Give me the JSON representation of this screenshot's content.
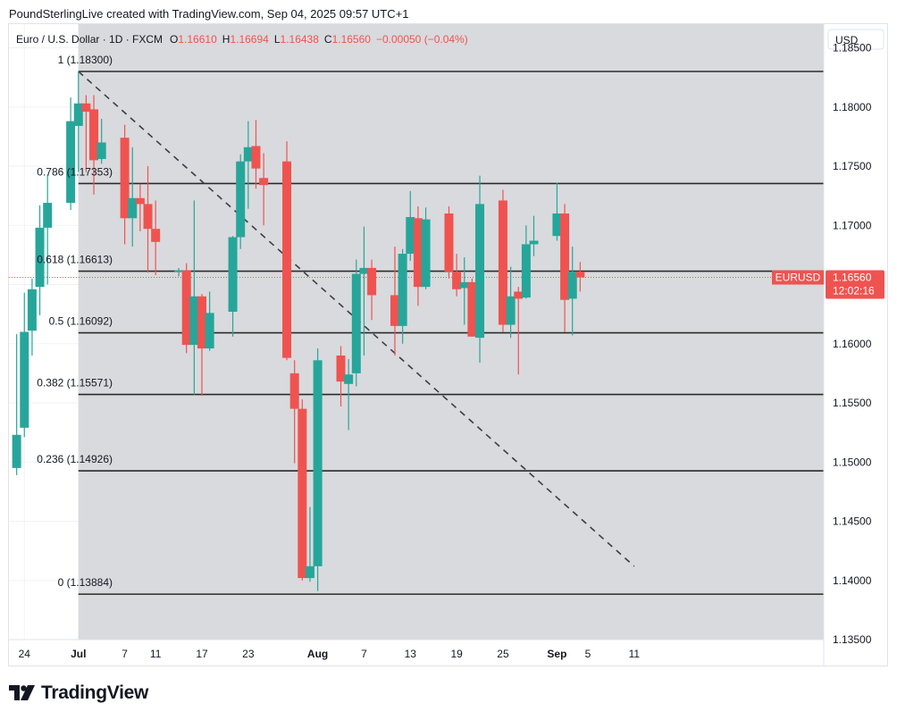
{
  "header": {
    "caption": "PoundSterlingLive created with TradingView.com, Sep 04, 2025 09:57 UTC+1"
  },
  "legend": {
    "symbol": "Euro / U.S. Dollar · 1D · FXCM",
    "o_label": "O",
    "o_value": "1.16610",
    "h_label": "H",
    "h_value": "1.16694",
    "l_label": "L",
    "l_value": "1.16438",
    "c_label": "C",
    "c_value": "1.16560",
    "change": "−0.00050 (−0.04%)"
  },
  "axis": {
    "currency": "USD",
    "price_ticks": [
      "1.18500",
      "1.18000",
      "1.17500",
      "1.17000",
      "1.16500",
      "1.16000",
      "1.15500",
      "1.15000",
      "1.14500",
      "1.14000",
      "1.13500"
    ],
    "time_ticks": [
      "24",
      "Jul",
      "7",
      "11",
      "17",
      "23",
      "Aug",
      "7",
      "13",
      "19",
      "25",
      "Sep",
      "5",
      "11"
    ]
  },
  "last_price": {
    "symbol": "EURUSD",
    "price": "1.16560",
    "countdown": "12:02:16"
  },
  "fib_labels": [
    "1 (1.18300)",
    "0.786 (1.17353)",
    "0.618 (1.16613)",
    "0.5 (1.16092)",
    "0.382 (1.15571)",
    "0.236 (1.14926)",
    "0 (1.13884)"
  ],
  "colors": {
    "up": "#26a69a",
    "down": "#ef5350",
    "zone": "#d9dadd",
    "fib_line": "#2a2a2a",
    "trend_line": "#3a3d45"
  },
  "logo": {
    "text": "TradingView"
  },
  "chart_data": {
    "type": "candlestick",
    "title": "Euro / U.S. Dollar · 1D · FXCM",
    "ylim": [
      1.135,
      1.187
    ],
    "xlim": [
      "2025-06-22",
      "2025-09-12"
    ],
    "candles": [
      {
        "date": "2025-06-23",
        "o": 1.1495,
        "h": 1.1608,
        "l": 1.1489,
        "c": 1.1523
      },
      {
        "date": "2025-06-24",
        "o": 1.1529,
        "h": 1.1643,
        "l": 1.1521,
        "c": 1.161
      },
      {
        "date": "2025-06-25",
        "o": 1.1611,
        "h": 1.1655,
        "l": 1.159,
        "c": 1.1646
      },
      {
        "date": "2025-06-26",
        "o": 1.1648,
        "h": 1.1717,
        "l": 1.1624,
        "c": 1.1698
      },
      {
        "date": "2025-06-27",
        "o": 1.1698,
        "h": 1.1743,
        "l": 1.165,
        "c": 1.1719
      },
      {
        "date": "2025-06-30",
        "o": 1.1719,
        "h": 1.1808,
        "l": 1.1713,
        "c": 1.1788
      },
      {
        "date": "2025-07-01",
        "o": 1.1784,
        "h": 1.183,
        "l": 1.1745,
        "c": 1.1803
      },
      {
        "date": "2025-07-02",
        "o": 1.1803,
        "h": 1.181,
        "l": 1.1745,
        "c": 1.1796
      },
      {
        "date": "2025-07-03",
        "o": 1.1798,
        "h": 1.181,
        "l": 1.1726,
        "c": 1.1755
      },
      {
        "date": "2025-07-04",
        "o": 1.1756,
        "h": 1.179,
        "l": 1.1752,
        "c": 1.177
      },
      {
        "date": "2025-07-07",
        "o": 1.1774,
        "h": 1.1785,
        "l": 1.1684,
        "c": 1.1706
      },
      {
        "date": "2025-07-08",
        "o": 1.1706,
        "h": 1.1766,
        "l": 1.1682,
        "c": 1.1723
      },
      {
        "date": "2025-07-09",
        "o": 1.1723,
        "h": 1.1735,
        "l": 1.1695,
        "c": 1.1718
      },
      {
        "date": "2025-07-10",
        "o": 1.1718,
        "h": 1.175,
        "l": 1.166,
        "c": 1.1697
      },
      {
        "date": "2025-07-11",
        "o": 1.1697,
        "h": 1.1721,
        "l": 1.1658,
        "c": 1.1686
      },
      {
        "date": "2025-07-14",
        "o": 1.1662,
        "h": 1.1664,
        "l": 1.1657,
        "c": 1.1662
      },
      {
        "date": "2025-07-15",
        "o": 1.1662,
        "h": 1.1668,
        "l": 1.1592,
        "c": 1.1599
      },
      {
        "date": "2025-07-16",
        "o": 1.1599,
        "h": 1.1721,
        "l": 1.1557,
        "c": 1.164
      },
      {
        "date": "2025-07-17",
        "o": 1.164,
        "h": 1.1642,
        "l": 1.1556,
        "c": 1.1596
      },
      {
        "date": "2025-07-18",
        "o": 1.1596,
        "h": 1.1644,
        "l": 1.1594,
        "c": 1.1626
      },
      {
        "date": "2025-07-21",
        "o": 1.1627,
        "h": 1.1691,
        "l": 1.1606,
        "c": 1.169
      },
      {
        "date": "2025-07-22",
        "o": 1.169,
        "h": 1.176,
        "l": 1.168,
        "c": 1.1754
      },
      {
        "date": "2025-07-23",
        "o": 1.1754,
        "h": 1.1788,
        "l": 1.1714,
        "c": 1.1766
      },
      {
        "date": "2025-07-24",
        "o": 1.1767,
        "h": 1.1789,
        "l": 1.1731,
        "c": 1.1748
      },
      {
        "date": "2025-07-25",
        "o": 1.174,
        "h": 1.1761,
        "l": 1.17,
        "c": 1.1734
      },
      {
        "date": "2025-07-28",
        "o": 1.1754,
        "h": 1.1771,
        "l": 1.1586,
        "c": 1.1588
      },
      {
        "date": "2025-07-29",
        "o": 1.1575,
        "h": 1.1586,
        "l": 1.1499,
        "c": 1.1545
      },
      {
        "date": "2025-07-30",
        "o": 1.1545,
        "h": 1.1553,
        "l": 1.14,
        "c": 1.1402
      },
      {
        "date": "2025-07-31",
        "o": 1.1402,
        "h": 1.1462,
        "l": 1.1399,
        "c": 1.1412
      },
      {
        "date": "2025-08-01",
        "o": 1.1412,
        "h": 1.1596,
        "l": 1.1391,
        "c": 1.1586
      },
      {
        "date": "2025-08-04",
        "o": 1.159,
        "h": 1.1598,
        "l": 1.1547,
        "c": 1.1568
      },
      {
        "date": "2025-08-05",
        "o": 1.1566,
        "h": 1.1587,
        "l": 1.1527,
        "c": 1.1574
      },
      {
        "date": "2025-08-06",
        "o": 1.1575,
        "h": 1.1671,
        "l": 1.1564,
        "c": 1.1659
      },
      {
        "date": "2025-08-07",
        "o": 1.1659,
        "h": 1.1699,
        "l": 1.159,
        "c": 1.1664
      },
      {
        "date": "2025-08-08",
        "o": 1.1664,
        "h": 1.1671,
        "l": 1.162,
        "c": 1.1641
      },
      {
        "date": "2025-08-11",
        "o": 1.1641,
        "h": 1.1682,
        "l": 1.159,
        "c": 1.1615
      },
      {
        "date": "2025-08-12",
        "o": 1.1615,
        "h": 1.168,
        "l": 1.16,
        "c": 1.1676
      },
      {
        "date": "2025-08-13",
        "o": 1.1676,
        "h": 1.1729,
        "l": 1.167,
        "c": 1.1707
      },
      {
        "date": "2025-08-14",
        "o": 1.1706,
        "h": 1.1716,
        "l": 1.1632,
        "c": 1.1648
      },
      {
        "date": "2025-08-15",
        "o": 1.1648,
        "h": 1.1715,
        "l": 1.1646,
        "c": 1.1705
      },
      {
        "date": "2025-08-18",
        "o": 1.171,
        "h": 1.1716,
        "l": 1.1655,
        "c": 1.1661
      },
      {
        "date": "2025-08-19",
        "o": 1.1661,
        "h": 1.1676,
        "l": 1.164,
        "c": 1.1646
      },
      {
        "date": "2025-08-20",
        "o": 1.1647,
        "h": 1.1673,
        "l": 1.1616,
        "c": 1.1652
      },
      {
        "date": "2025-08-21",
        "o": 1.1652,
        "h": 1.1655,
        "l": 1.1606,
        "c": 1.1606
      },
      {
        "date": "2025-08-22",
        "o": 1.1605,
        "h": 1.1742,
        "l": 1.1584,
        "c": 1.1718
      },
      {
        "date": "2025-08-25",
        "o": 1.1721,
        "h": 1.173,
        "l": 1.161,
        "c": 1.1616
      },
      {
        "date": "2025-08-26",
        "o": 1.1616,
        "h": 1.1665,
        "l": 1.1605,
        "c": 1.164
      },
      {
        "date": "2025-08-27",
        "o": 1.1644,
        "h": 1.1648,
        "l": 1.1574,
        "c": 1.1638
      },
      {
        "date": "2025-08-28",
        "o": 1.1639,
        "h": 1.17,
        "l": 1.1638,
        "c": 1.1684
      },
      {
        "date": "2025-08-29",
        "o": 1.1684,
        "h": 1.1708,
        "l": 1.1674,
        "c": 1.1687
      },
      {
        "date": "2025-09-01",
        "o": 1.1691,
        "h": 1.1736,
        "l": 1.1687,
        "c": 1.171
      },
      {
        "date": "2025-09-02",
        "o": 1.171,
        "h": 1.1718,
        "l": 1.161,
        "c": 1.1637
      },
      {
        "date": "2025-09-03",
        "o": 1.1638,
        "h": 1.1682,
        "l": 1.1607,
        "c": 1.1661
      },
      {
        "date": "2025-09-04",
        "o": 1.1661,
        "h": 1.1669,
        "l": 1.1644,
        "c": 1.1656
      }
    ],
    "fib_levels": [
      {
        "ratio": "1",
        "price": 1.183
      },
      {
        "ratio": "0.786",
        "price": 1.17353
      },
      {
        "ratio": "0.618",
        "price": 1.16613
      },
      {
        "ratio": "0.5",
        "price": 1.16092
      },
      {
        "ratio": "0.382",
        "price": 1.15571
      },
      {
        "ratio": "0.236",
        "price": 1.14926
      },
      {
        "ratio": "0",
        "price": 1.13884
      }
    ],
    "fib_zone": {
      "start": "2025-07-01",
      "end": "2025-09-12",
      "top": 1.187,
      "bottom": 1.135
    },
    "trend_line": {
      "start": {
        "date": "2025-07-01",
        "price": 1.183
      },
      "end": {
        "date": "2025-09-11",
        "price": 1.1412
      }
    },
    "last_price": 1.1656,
    "grid": true
  }
}
